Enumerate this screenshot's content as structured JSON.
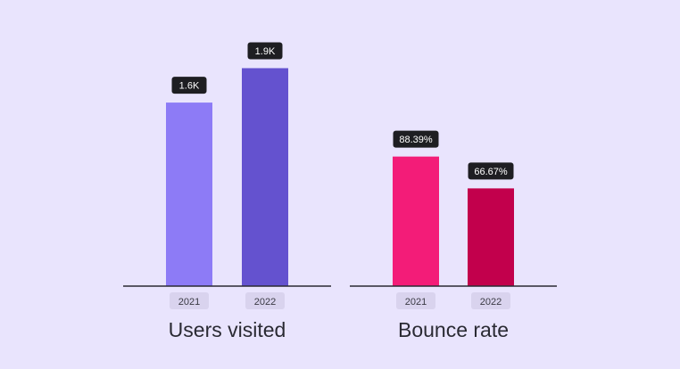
{
  "chart_data": [
    {
      "type": "bar",
      "title": "Users visited",
      "categories": [
        "2021",
        "2022"
      ],
      "values": [
        1600,
        1900
      ],
      "data_labels": [
        "1.6K",
        "1.9K"
      ],
      "colors": [
        "#8d7bf6",
        "#6452cf"
      ],
      "ylim": [
        0,
        2300
      ],
      "grid": false
    },
    {
      "type": "bar",
      "title": "Bounce rate",
      "categories": [
        "2021",
        "2022"
      ],
      "values": [
        88.39,
        66.67
      ],
      "data_labels": [
        "88.39%",
        "66.67%"
      ],
      "colors": [
        "#f31c78",
        "#c2004c"
      ],
      "ylim": [
        0,
        180
      ],
      "grid": false
    }
  ],
  "theme": {
    "background": "#e9e4fd",
    "label_bg": "#1e1e22",
    "label_text": "#ffffff",
    "tick_bg": "#d9d3ee",
    "tick_text": "#3a3a44",
    "axis": "#2a2a33"
  }
}
